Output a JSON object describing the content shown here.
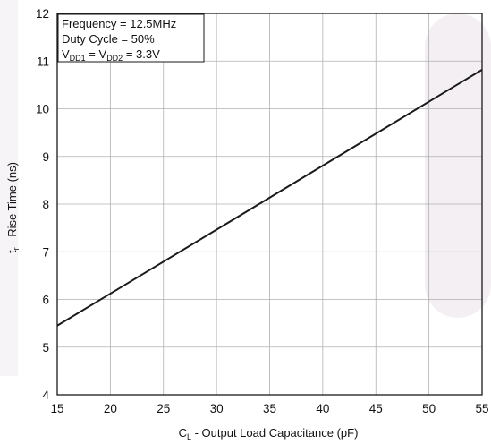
{
  "chart_data": {
    "type": "line",
    "title": "",
    "xlabel": {
      "main": "C",
      "sub": "L",
      "rest": " - Output Load Capacitance (pF)"
    },
    "ylabel": {
      "main": "t",
      "sub": "r",
      "rest": " - Rise Time (ns)"
    },
    "xlim": [
      15,
      55
    ],
    "ylim": [
      4,
      12
    ],
    "x_ticks": [
      15,
      20,
      25,
      30,
      35,
      40,
      45,
      50,
      55
    ],
    "y_ticks": [
      4,
      5,
      6,
      7,
      8,
      9,
      10,
      11,
      12
    ],
    "grid": true,
    "series": [
      {
        "x": [
          15,
          55
        ],
        "y": [
          5.45,
          10.82
        ]
      }
    ],
    "legend": {
      "placement": "top-left",
      "line1": "Frequency = 12.5MHz",
      "line2": "Duty Cycle = 50%",
      "line3": {
        "v1": "V",
        "s1": "DD1",
        "eq": " = ",
        "v2": "V",
        "s2": "DD2",
        "val": " = 3.3V"
      }
    },
    "colors": {
      "line": "#1a1a1a",
      "grid": "#b0b0b0",
      "frame": "#1a1a1a",
      "background_shade": "#f2eef2"
    }
  }
}
